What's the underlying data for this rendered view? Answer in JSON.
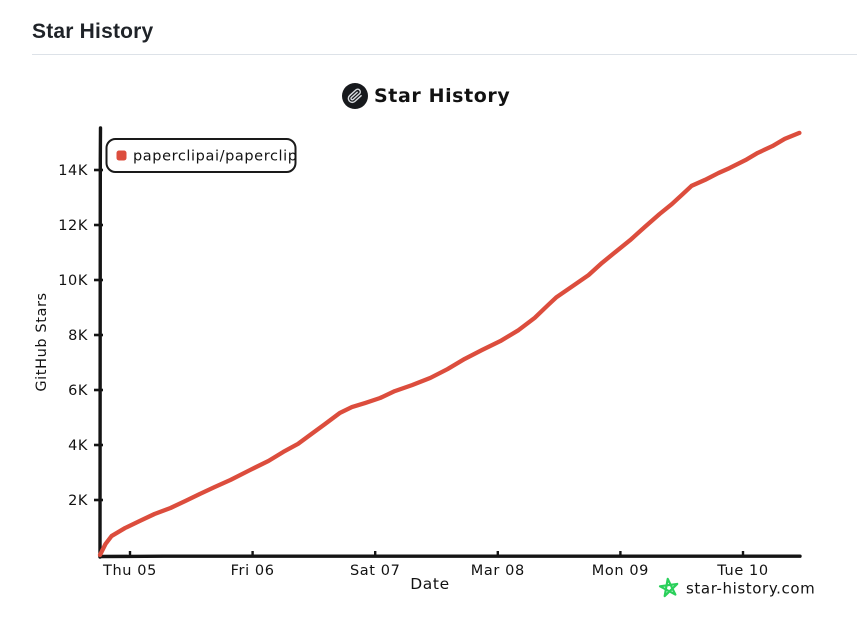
{
  "page": {
    "title": "Star History"
  },
  "chart": {
    "title": "Star History",
    "icon": "paperclip-avatar",
    "watermark": {
      "text": "star-history.com",
      "icon": "green-star",
      "icon_color": "#2bd05b",
      "text_color": "#8a8f94"
    }
  },
  "colors": {
    "series_red": "#dc4d3d",
    "axis_black": "#141414",
    "divider_gray": "#dde2e8"
  },
  "chart_data": {
    "type": "line",
    "title": "Star History",
    "xlabel": "Date",
    "ylabel": "GitHub Stars",
    "x_tick_labels": [
      "Thu 05",
      "Fri 06",
      "Sat 07",
      "Mar 08",
      "Mon 09",
      "Tue 10"
    ],
    "x_unit": "days relative to first tick (Thu 05 00:00)",
    "y_ticks": [
      {
        "label": "2K",
        "value": 2000
      },
      {
        "label": "4K",
        "value": 4000
      },
      {
        "label": "6K",
        "value": 6000
      },
      {
        "label": "8K",
        "value": 8000
      },
      {
        "label": "10K",
        "value": 10000
      },
      {
        "label": "12K",
        "value": 12000
      },
      {
        "label": "14K",
        "value": 14000
      }
    ],
    "ylim": [
      0,
      15500
    ],
    "xlim_days": [
      -0.25,
      5.47
    ],
    "grid": false,
    "legend_position": "top-left",
    "series": [
      {
        "name": "paperclipai/paperclip",
        "color": "#dc4d3d",
        "points": [
          [
            -0.245,
            0
          ],
          [
            -0.2,
            400
          ],
          [
            -0.15,
            690
          ],
          [
            -0.04,
            980
          ],
          [
            0.08,
            1240
          ],
          [
            0.2,
            1490
          ],
          [
            0.33,
            1710
          ],
          [
            0.45,
            1960
          ],
          [
            0.57,
            2220
          ],
          [
            0.69,
            2470
          ],
          [
            0.82,
            2730
          ],
          [
            0.98,
            3090
          ],
          [
            1.13,
            3420
          ],
          [
            1.25,
            3750
          ],
          [
            1.37,
            4040
          ],
          [
            1.48,
            4400
          ],
          [
            1.59,
            4760
          ],
          [
            1.71,
            5160
          ],
          [
            1.81,
            5380
          ],
          [
            1.92,
            5530
          ],
          [
            2.04,
            5710
          ],
          [
            2.16,
            5960
          ],
          [
            2.3,
            6180
          ],
          [
            2.45,
            6440
          ],
          [
            2.59,
            6760
          ],
          [
            2.73,
            7130
          ],
          [
            2.87,
            7450
          ],
          [
            3.02,
            7780
          ],
          [
            3.17,
            8180
          ],
          [
            3.3,
            8620
          ],
          [
            3.41,
            9090
          ],
          [
            3.48,
            9380
          ],
          [
            3.61,
            9780
          ],
          [
            3.74,
            10180
          ],
          [
            3.85,
            10620
          ],
          [
            3.96,
            11020
          ],
          [
            4.08,
            11450
          ],
          [
            4.2,
            11930
          ],
          [
            4.32,
            12400
          ],
          [
            4.42,
            12760
          ],
          [
            4.51,
            13130
          ],
          [
            4.58,
            13420
          ],
          [
            4.69,
            13640
          ],
          [
            4.8,
            13890
          ],
          [
            4.89,
            14070
          ],
          [
            5.02,
            14360
          ],
          [
            5.12,
            14620
          ],
          [
            5.24,
            14870
          ],
          [
            5.34,
            15130
          ],
          [
            5.46,
            15350
          ]
        ]
      }
    ]
  }
}
